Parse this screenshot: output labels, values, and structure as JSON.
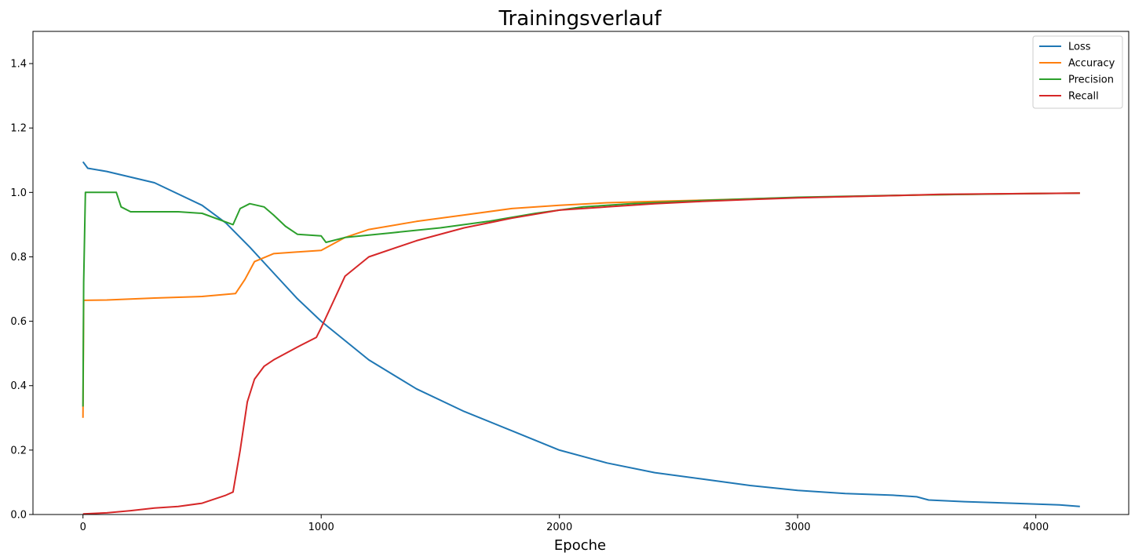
{
  "chart_data": {
    "type": "line",
    "title": "Trainingsverlauf",
    "xlabel": "Epoche",
    "ylabel": "",
    "xlim": [
      -210,
      4390
    ],
    "ylim": [
      0,
      1.5
    ],
    "x_ticks": [
      0,
      1000,
      2000,
      3000,
      4000
    ],
    "y_ticks": [
      0.0,
      0.2,
      0.4,
      0.6,
      0.8,
      1.0,
      1.2,
      1.4
    ],
    "x_tick_labels": [
      "0",
      "1000",
      "2000",
      "3000",
      "4000"
    ],
    "y_tick_labels": [
      "0.0",
      "0.2",
      "0.4",
      "0.6",
      "0.8",
      "1.0",
      "1.2",
      "1.4"
    ],
    "legend_position": "top-right",
    "grid": false,
    "series": [
      {
        "name": "Loss",
        "color": "#1f77b4",
        "x": [
          0,
          20,
          100,
          300,
          500,
          600,
          700,
          800,
          900,
          1000,
          1200,
          1400,
          1600,
          1800,
          2000,
          2200,
          2400,
          2600,
          2800,
          3000,
          3200,
          3400,
          3500,
          3550,
          3700,
          3900,
          4100,
          4185
        ],
        "y": [
          1.095,
          1.075,
          1.065,
          1.03,
          0.96,
          0.905,
          0.83,
          0.75,
          0.67,
          0.6,
          0.48,
          0.39,
          0.32,
          0.26,
          0.2,
          0.16,
          0.13,
          0.11,
          0.09,
          0.075,
          0.065,
          0.06,
          0.055,
          0.045,
          0.04,
          0.035,
          0.03,
          0.025
        ]
      },
      {
        "name": "Accuracy",
        "color": "#ff7f0e",
        "x": [
          0,
          3,
          100,
          300,
          500,
          640,
          680,
          720,
          800,
          900,
          1000,
          1100,
          1200,
          1400,
          1600,
          1800,
          2000,
          2200,
          2400,
          2600,
          2800,
          3000,
          3200,
          3400,
          3600,
          3800,
          4000,
          4185
        ],
        "y": [
          0.3,
          0.665,
          0.666,
          0.672,
          0.677,
          0.686,
          0.73,
          0.785,
          0.81,
          0.815,
          0.82,
          0.86,
          0.885,
          0.91,
          0.93,
          0.95,
          0.96,
          0.968,
          0.972,
          0.976,
          0.98,
          0.984,
          0.987,
          0.99,
          0.993,
          0.995,
          0.997,
          0.998
        ]
      },
      {
        "name": "Precision",
        "color": "#2ca02c",
        "x": [
          0,
          3,
          10,
          140,
          160,
          200,
          300,
          400,
          500,
          630,
          660,
          700,
          760,
          800,
          850,
          900,
          1000,
          1020,
          1100,
          1300,
          1500,
          1700,
          1900,
          2100,
          2300,
          2600,
          3000,
          3500,
          4185
        ],
        "y": [
          0.335,
          0.72,
          1.0,
          1.0,
          0.955,
          0.94,
          0.94,
          0.94,
          0.935,
          0.9,
          0.95,
          0.965,
          0.955,
          0.93,
          0.895,
          0.87,
          0.865,
          0.845,
          0.86,
          0.875,
          0.89,
          0.91,
          0.935,
          0.955,
          0.965,
          0.975,
          0.985,
          0.992,
          0.998
        ]
      },
      {
        "name": "Recall",
        "color": "#d62728",
        "x": [
          0,
          100,
          200,
          300,
          400,
          500,
          600,
          630,
          660,
          690,
          720,
          760,
          800,
          900,
          980,
          1000,
          1050,
          1100,
          1200,
          1400,
          1600,
          1800,
          2000,
          2200,
          2400,
          2600,
          2800,
          3000,
          3200,
          3400,
          3600,
          4185
        ],
        "y": [
          0.002,
          0.005,
          0.012,
          0.02,
          0.025,
          0.035,
          0.06,
          0.07,
          0.2,
          0.35,
          0.42,
          0.46,
          0.48,
          0.52,
          0.55,
          0.58,
          0.66,
          0.74,
          0.8,
          0.85,
          0.89,
          0.92,
          0.945,
          0.955,
          0.965,
          0.972,
          0.978,
          0.983,
          0.987,
          0.99,
          0.994,
          0.998
        ]
      }
    ]
  }
}
